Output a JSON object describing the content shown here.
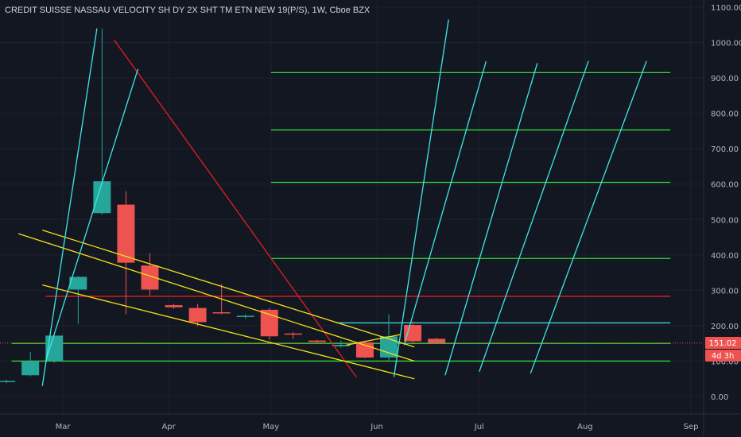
{
  "header": {
    "title": "CREDIT SUISSE NASSAU VELOCITY SH DY 2X SHT TM ETN NEW 19(P/S), 1W, Cboe BZX"
  },
  "price_axis": {
    "last_price_label": "151.02",
    "countdown_label": "4d 3h"
  },
  "colors": {
    "background": "#131722",
    "up": "#26a69a",
    "down": "#ef5350",
    "yellow": "#f5e216",
    "cyan": "#3ee6e6",
    "green": "#31d837",
    "red": "#e31f1f",
    "grid": "#1e2230",
    "text": "#b2b5be"
  },
  "chart_data": {
    "type": "candlestick",
    "title": "CREDIT SUISSE NASSAU VELOCITY SH DY 2X SHT TM ETN NEW 19(P/S), 1W, Cboe BZX",
    "xlabel": "",
    "ylabel": "",
    "ylim": [
      -40,
      1110
    ],
    "grid": true,
    "y_ticks": [
      0,
      100,
      200,
      300,
      400,
      500,
      600,
      700,
      800,
      900,
      1000,
      1100
    ],
    "y_tick_labels": [
      "0.00",
      "100.00",
      "200.00",
      "300.00",
      "400.00",
      "500.00",
      "600.00",
      "700.00",
      "800.00",
      "900.00",
      "1000.00",
      "1100.00"
    ],
    "x_ticks": [
      {
        "label": "Mar",
        "date": "2020-03-01"
      },
      {
        "label": "Apr",
        "date": "2020-04-01"
      },
      {
        "label": "May",
        "date": "2020-05-01"
      },
      {
        "label": "Jun",
        "date": "2020-06-01"
      },
      {
        "label": "Jul",
        "date": "2020-07-01"
      },
      {
        "label": "Aug",
        "date": "2020-08-01"
      },
      {
        "label": "Sep",
        "date": "2020-09-01"
      }
    ],
    "candles": [
      {
        "date": "2020-02-10",
        "open": 42,
        "high": 47,
        "low": 38,
        "close": 44
      },
      {
        "date": "2020-02-17",
        "open": 60,
        "high": 125,
        "low": 57,
        "close": 100
      },
      {
        "date": "2020-02-24",
        "open": 100,
        "high": 175,
        "low": 95,
        "close": 172
      },
      {
        "date": "2020-03-02",
        "open": 302,
        "high": 340,
        "low": 205,
        "close": 338
      },
      {
        "date": "2020-03-09",
        "open": 518,
        "high": 1040,
        "low": 514,
        "close": 608
      },
      {
        "date": "2020-03-16",
        "open": 542,
        "high": 580,
        "low": 232,
        "close": 378
      },
      {
        "date": "2020-03-23",
        "open": 370,
        "high": 405,
        "low": 285,
        "close": 302
      },
      {
        "date": "2020-03-30",
        "open": 258,
        "high": 262,
        "low": 248,
        "close": 252
      },
      {
        "date": "2020-04-06",
        "open": 250,
        "high": 262,
        "low": 198,
        "close": 210
      },
      {
        "date": "2020-04-13",
        "open": 238,
        "high": 318,
        "low": 232,
        "close": 236
      },
      {
        "date": "2020-04-20",
        "open": 226,
        "high": 232,
        "low": 220,
        "close": 228
      },
      {
        "date": "2020-04-27",
        "open": 245,
        "high": 250,
        "low": 160,
        "close": 170
      },
      {
        "date": "2020-05-04",
        "open": 178,
        "high": 182,
        "low": 162,
        "close": 175
      },
      {
        "date": "2020-05-11",
        "open": 158,
        "high": 160,
        "low": 150,
        "close": 154
      },
      {
        "date": "2020-05-18",
        "open": 142,
        "high": 158,
        "low": 138,
        "close": 146
      },
      {
        "date": "2020-05-25",
        "open": 153,
        "high": 158,
        "low": 108,
        "close": 110
      },
      {
        "date": "2020-06-01",
        "open": 110,
        "high": 232,
        "low": 100,
        "close": 170
      },
      {
        "date": "2020-06-08",
        "open": 202,
        "high": 212,
        "low": 152,
        "close": 156
      },
      {
        "date": "2020-06-15",
        "open": 163,
        "high": 166,
        "low": 150,
        "close": 151
      }
    ],
    "horizontal_levels": [
      {
        "color": "green",
        "y": 915,
        "from": "2020-05-01",
        "to": "2020-08-26"
      },
      {
        "color": "green",
        "y": 753,
        "from": "2020-05-01",
        "to": "2020-08-26"
      },
      {
        "color": "green",
        "y": 605,
        "from": "2020-05-01",
        "to": "2020-08-26"
      },
      {
        "color": "green",
        "y": 390,
        "from": "2020-05-01",
        "to": "2020-08-26"
      },
      {
        "color": "green",
        "y": 150,
        "from": "2020-02-15",
        "to": "2020-08-26"
      },
      {
        "color": "green",
        "y": 100,
        "from": "2020-02-15",
        "to": "2020-08-26"
      },
      {
        "color": "red",
        "y": 283,
        "from": "2020-02-25",
        "to": "2020-08-26"
      },
      {
        "color": "cyan",
        "y": 208,
        "from": "2020-05-20",
        "to": "2020-08-26"
      }
    ],
    "trend_lines": [
      {
        "color": "red",
        "x1": "2020-03-16",
        "y1": 1008,
        "x2": "2020-05-26",
        "y2": 55
      },
      {
        "color": "yellow",
        "x1": "2020-02-24",
        "y1": 470,
        "x2": "2020-06-12",
        "y2": 140
      },
      {
        "color": "yellow",
        "x1": "2020-02-17",
        "y1": 460,
        "x2": "2020-06-12",
        "y2": 100
      },
      {
        "color": "yellow",
        "x1": "2020-02-24",
        "y1": 315,
        "x2": "2020-06-12",
        "y2": 50
      },
      {
        "color": "yellow",
        "x1": "2020-05-23",
        "y1": 145,
        "x2": "2020-06-08",
        "y2": 175
      },
      {
        "color": "cyan",
        "x1": "2020-02-24",
        "y1": 30,
        "x2": "2020-03-11",
        "y2": 1040
      },
      {
        "color": "cyan",
        "x1": "2020-02-25",
        "y1": 100,
        "x2": "2020-03-23",
        "y2": 925
      },
      {
        "color": "cyan",
        "x1": "2020-06-06",
        "y1": 55,
        "x2": "2020-06-22",
        "y2": 1065
      },
      {
        "color": "cyan",
        "x1": "2020-06-09",
        "y1": 145,
        "x2": "2020-07-03",
        "y2": 947
      },
      {
        "color": "cyan",
        "x1": "2020-06-21",
        "y1": 60,
        "x2": "2020-07-18",
        "y2": 942
      },
      {
        "color": "cyan",
        "x1": "2020-07-01",
        "y1": 70,
        "x2": "2020-08-02",
        "y2": 948
      },
      {
        "color": "cyan",
        "x1": "2020-07-16",
        "y1": 65,
        "x2": "2020-08-19",
        "y2": 948
      }
    ]
  }
}
